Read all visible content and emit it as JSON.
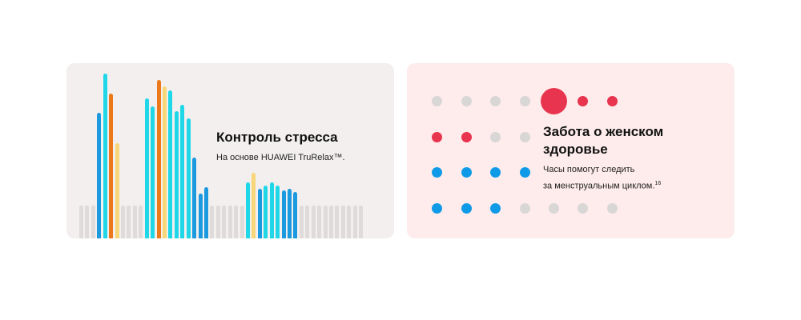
{
  "stress_card": {
    "title": "Контроль стресса",
    "subtitle": "На основе HUAWEI TruRelax™.",
    "background": "#f2efee",
    "colors": {
      "gray": "#dedbda",
      "blue": "#1c9ae0",
      "cyan": "#20d7e8",
      "orange": "#ec7a1c",
      "yellow": "#f8d77a"
    },
    "bars": [
      [
        "gray",
        20
      ],
      [
        "gray",
        20
      ],
      [
        "gray",
        20
      ],
      [
        "blue",
        76
      ],
      [
        "cyan",
        100
      ],
      [
        "orange",
        88
      ],
      [
        "yellow",
        58
      ],
      [
        "gray",
        20
      ],
      [
        "gray",
        20
      ],
      [
        "gray",
        20
      ],
      [
        "gray",
        20
      ],
      [
        "cyan",
        85
      ],
      [
        "cyan",
        80
      ],
      [
        "orange",
        96
      ],
      [
        "yellow",
        92
      ],
      [
        "cyan",
        90
      ],
      [
        "cyan",
        77
      ],
      [
        "cyan",
        81
      ],
      [
        "cyan",
        73
      ],
      [
        "blue",
        49
      ],
      [
        "blue",
        27
      ],
      [
        "blue",
        31
      ],
      [
        "gray",
        20
      ],
      [
        "gray",
        20
      ],
      [
        "gray",
        20
      ],
      [
        "gray",
        20
      ],
      [
        "gray",
        20
      ],
      [
        "gray",
        20
      ],
      [
        "cyan",
        34
      ],
      [
        "yellow",
        40
      ],
      [
        "blue",
        30
      ],
      [
        "cyan",
        32
      ],
      [
        "cyan",
        34
      ],
      [
        "cyan",
        32
      ],
      [
        "blue",
        29
      ],
      [
        "blue",
        30
      ],
      [
        "blue",
        28
      ],
      [
        "gray",
        20
      ],
      [
        "gray",
        20
      ],
      [
        "gray",
        20
      ],
      [
        "gray",
        20
      ],
      [
        "gray",
        20
      ],
      [
        "gray",
        20
      ],
      [
        "gray",
        20
      ],
      [
        "gray",
        20
      ],
      [
        "gray",
        20
      ],
      [
        "gray",
        20
      ],
      [
        "gray",
        20
      ]
    ]
  },
  "women_card": {
    "title_line1": "Забота о женском",
    "title_line2": "здоровье",
    "subtitle_line1": "Часы помогут следить",
    "subtitle_line2": "за менструальным циклом.",
    "footnote": "16",
    "background": "#fdeceb",
    "colors": {
      "gray": "#d9d6d6",
      "red": "#e8344e",
      "blue": "#0f9ae8"
    },
    "dots": [
      [
        "gray",
        "gray",
        "gray",
        "gray",
        "red-large",
        "red",
        "red"
      ],
      [
        "red",
        "red",
        "gray",
        "gray"
      ],
      [
        "blue",
        "blue",
        "blue",
        "blue"
      ],
      [
        "blue",
        "blue",
        "blue",
        "gray",
        "gray",
        "gray",
        "gray"
      ]
    ]
  }
}
